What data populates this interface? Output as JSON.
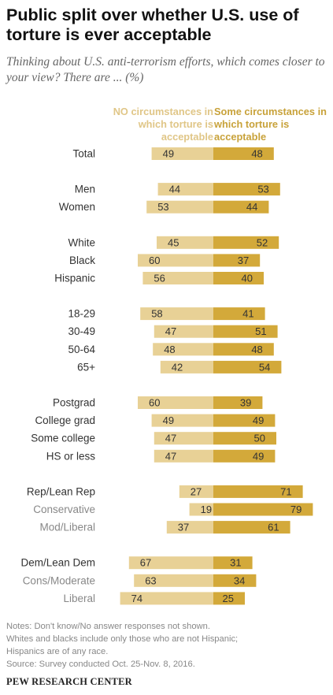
{
  "title": "Public split over whether U.S. use of torture is ever acceptable",
  "subtitle": "Thinking about U.S. anti-terrorism efforts, which comes closer to your view? There are ... (%)",
  "colors": {
    "no": "#e8d196",
    "some": "#d3a93a",
    "label_dark": "#333333",
    "label_gray": "#888888"
  },
  "chart_data": {
    "type": "bar",
    "orientation": "diverging-horizontal",
    "series": [
      {
        "name": "NO circumstances in which torture is acceptable",
        "color": "#e8d196"
      },
      {
        "name": "Some circumstances in which torture is acceptable",
        "color": "#d3a93a"
      }
    ],
    "rows": [
      {
        "label": "Total",
        "no": 49,
        "some": 48,
        "group": 0,
        "sub": false
      },
      {
        "label": "Men",
        "no": 44,
        "some": 53,
        "group": 1,
        "sub": false
      },
      {
        "label": "Women",
        "no": 53,
        "some": 44,
        "group": 1,
        "sub": false
      },
      {
        "label": "White",
        "no": 45,
        "some": 52,
        "group": 2,
        "sub": false
      },
      {
        "label": "Black",
        "no": 60,
        "some": 37,
        "group": 2,
        "sub": false
      },
      {
        "label": "Hispanic",
        "no": 56,
        "some": 40,
        "group": 2,
        "sub": false
      },
      {
        "label": "18-29",
        "no": 58,
        "some": 41,
        "group": 3,
        "sub": false
      },
      {
        "label": "30-49",
        "no": 47,
        "some": 51,
        "group": 3,
        "sub": false
      },
      {
        "label": "50-64",
        "no": 48,
        "some": 48,
        "group": 3,
        "sub": false
      },
      {
        "label": "65+",
        "no": 42,
        "some": 54,
        "group": 3,
        "sub": false
      },
      {
        "label": "Postgrad",
        "no": 60,
        "some": 39,
        "group": 4,
        "sub": false
      },
      {
        "label": "College grad",
        "no": 49,
        "some": 49,
        "group": 4,
        "sub": false
      },
      {
        "label": "Some college",
        "no": 47,
        "some": 50,
        "group": 4,
        "sub": false
      },
      {
        "label": "HS or less",
        "no": 47,
        "some": 49,
        "group": 4,
        "sub": false
      },
      {
        "label": "Rep/Lean Rep",
        "no": 27,
        "some": 71,
        "group": 5,
        "sub": false
      },
      {
        "label": "Conservative",
        "no": 19,
        "some": 79,
        "group": 5,
        "sub": true
      },
      {
        "label": "Mod/Liberal",
        "no": 37,
        "some": 61,
        "group": 5,
        "sub": true
      },
      {
        "label": "Dem/Lean Dem",
        "no": 67,
        "some": 31,
        "group": 6,
        "sub": false
      },
      {
        "label": "Cons/Moderate",
        "no": 63,
        "some": 34,
        "group": 6,
        "sub": true
      },
      {
        "label": "Liberal",
        "no": 74,
        "some": 25,
        "group": 6,
        "sub": true
      }
    ]
  },
  "column_headers": {
    "no": "NO circumstances in which torture is acceptable",
    "some": "Some circumstances in which torture is acceptable"
  },
  "notes": [
    "Notes: Don't know/No answer responses not shown.",
    "Whites and blacks include only those who are not Hispanic;",
    "Hispanics are of any race.",
    "Source: Survey conducted Oct. 25-Nov. 8, 2016."
  ],
  "footer": "PEW RESEARCH CENTER"
}
